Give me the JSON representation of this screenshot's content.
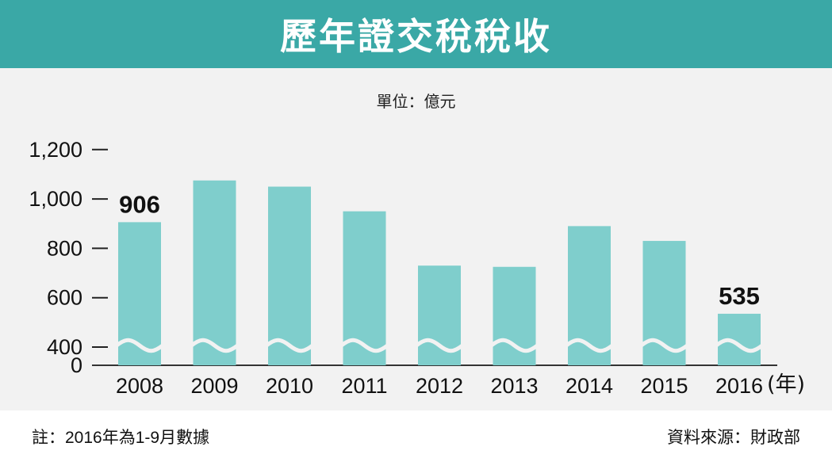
{
  "header": {
    "title": "歷年證交稅稅收"
  },
  "unit_label": "單位：億元",
  "footer": {
    "note": "註：2016年為1-9月數據",
    "source": "資料來源：財政部"
  },
  "colors": {
    "header_bg": "#3aa8a6",
    "bar": "#7fcecc",
    "plot_bg": "#f2f2f2"
  },
  "chart_data": {
    "type": "bar",
    "categories": [
      "2008",
      "2009",
      "2010",
      "2011",
      "2012",
      "2013",
      "2014",
      "2015",
      "2016"
    ],
    "values": [
      906,
      1075,
      1050,
      950,
      730,
      725,
      890,
      830,
      535
    ],
    "data_labels": [
      {
        "index": 0,
        "text": "906"
      },
      {
        "index": 8,
        "text": "535"
      }
    ],
    "y_ticks": [
      "0",
      "400",
      "600",
      "800",
      "1,000",
      "1,200"
    ],
    "x_unit_label": "(年)",
    "ylim": [
      0,
      1200
    ],
    "axis_break": true,
    "grid": false
  }
}
